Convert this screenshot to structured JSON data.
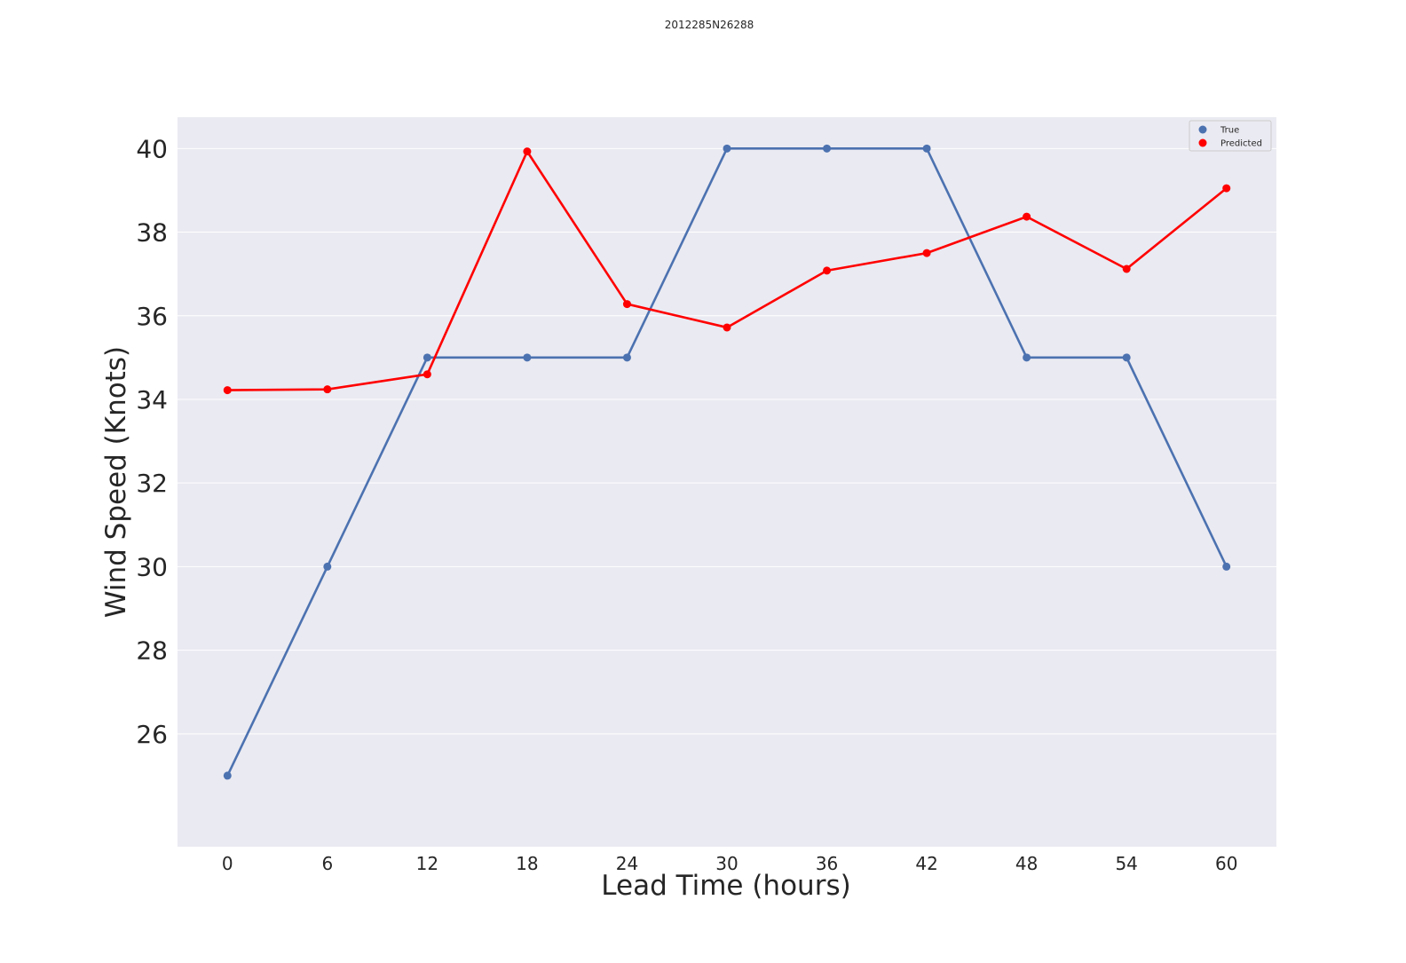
{
  "chart_data": {
    "type": "line",
    "title": "2012285N26288",
    "xlabel": "Lead Time (hours)",
    "ylabel": "Wind Speed (Knots)",
    "x": [
      0,
      6,
      12,
      18,
      24,
      30,
      36,
      42,
      48,
      54,
      60
    ],
    "x_tick_labels": [
      "0",
      "6",
      "12",
      "18",
      "24",
      "30",
      "36",
      "42",
      "48",
      "54",
      "60"
    ],
    "y_ticks": [
      26,
      28,
      30,
      32,
      34,
      36,
      38,
      40
    ],
    "y_tick_labels": [
      "26",
      "28",
      "30",
      "32",
      "34",
      "36",
      "38",
      "40"
    ],
    "ylim": [
      23.3,
      40.75
    ],
    "grid": true,
    "legend_position": "top-right",
    "series": [
      {
        "name": "True",
        "color": "#4c72b0",
        "values": [
          25,
          30,
          35,
          35,
          35,
          40,
          40,
          40,
          35,
          35,
          30
        ]
      },
      {
        "name": "Predicted",
        "color": "#ff0000",
        "values": [
          34.22,
          34.24,
          34.6,
          39.93,
          36.28,
          35.72,
          37.08,
          37.5,
          38.37,
          37.12,
          39.05
        ]
      }
    ],
    "background_color": "#eaeaf2"
  }
}
